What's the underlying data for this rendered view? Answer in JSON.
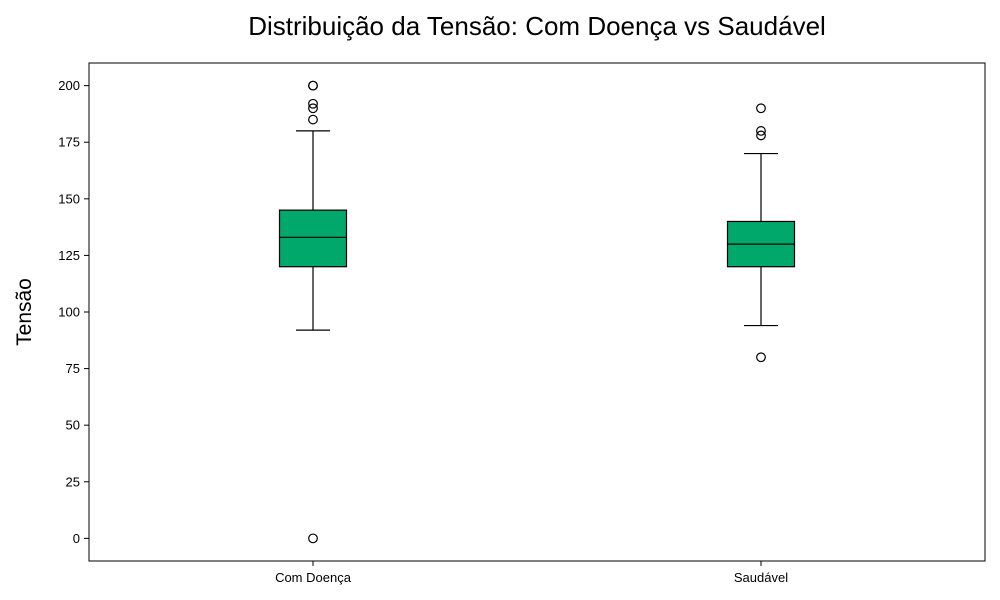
{
  "chart_data": {
    "type": "box",
    "title": "Distribuição da Tensão: Com Doença vs Saudável",
    "xlabel": "",
    "ylabel": "Tensão",
    "ylim": [
      -10,
      210
    ],
    "yticks": [
      0,
      25,
      50,
      75,
      100,
      125,
      150,
      175,
      200
    ],
    "grid": false,
    "legend": "none",
    "box_color": "#00a86b",
    "categories": [
      "Com Doença",
      "Saudável"
    ],
    "boxes": [
      {
        "category": "Com Doença",
        "whisker_low": 92,
        "q1": 120,
        "median": 133,
        "q3": 145,
        "whisker_high": 180,
        "outliers": [
          0,
          185,
          190,
          192,
          200,
          200
        ]
      },
      {
        "category": "Saudável",
        "whisker_low": 94,
        "q1": 120,
        "median": 130,
        "q3": 140,
        "whisker_high": 170,
        "outliers": [
          80,
          178,
          180,
          190
        ]
      }
    ]
  }
}
